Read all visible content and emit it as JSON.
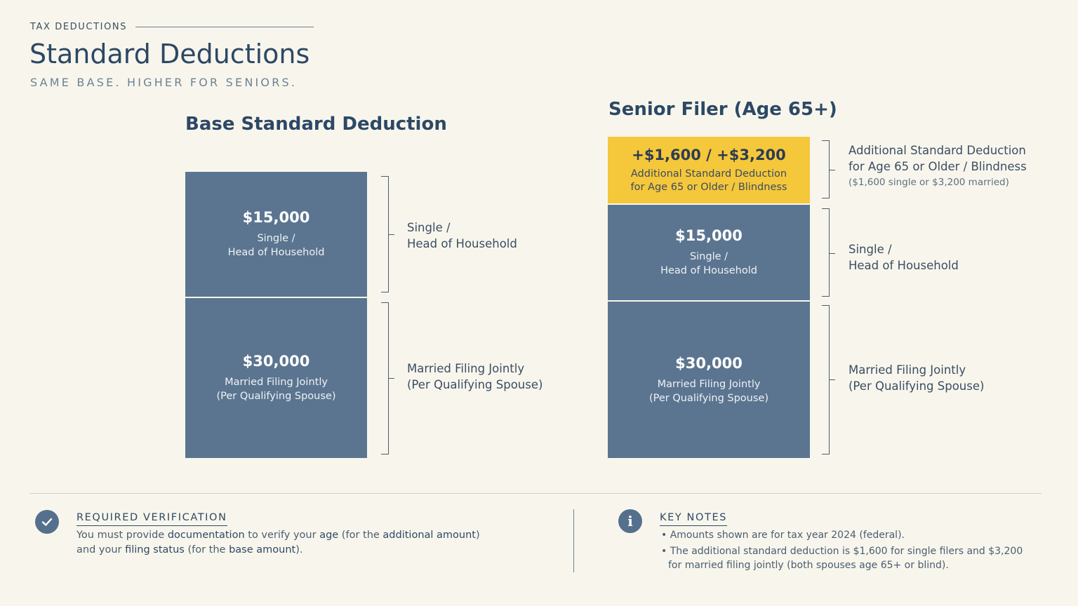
{
  "header": {
    "eyebrow": "TAX DEDUCTIONS",
    "title": "Standard Deductions",
    "subtitle": "SAME BASE. HIGHER FOR SENIORS."
  },
  "base": {
    "title": "Base Standard Deduction",
    "blocks": [
      {
        "amount": "$15,000",
        "label_line1": "Single /",
        "label_line2": "Head of Household"
      },
      {
        "amount": "$30,000",
        "label_line1": "Married Filing Jointly",
        "label_line2": "(Per Qualifying Spouse)"
      }
    ],
    "side_labels": [
      {
        "line1": "Single /",
        "line2": "Head of Household"
      },
      {
        "line1": "Married Filing Jointly",
        "line2": "(Per Qualifying Spouse)"
      }
    ]
  },
  "senior": {
    "title": "Senior Filer (Age 65+)",
    "additional": {
      "amount": "+$1,600 / +$3,200",
      "label_line1": "Additional Standard Deduction",
      "label_line2": "for Age 65 or Older / Blindness"
    },
    "blocks": [
      {
        "amount": "$15,000",
        "label_line1": "Single /",
        "label_line2": "Head of Household"
      },
      {
        "amount": "$30,000",
        "label_line1": "Married Filing Jointly",
        "label_line2": "(Per Qualifying Spouse)"
      }
    ],
    "side_labels": {
      "additional": {
        "line1": "Additional Standard Deduction",
        "line2": "for Age 65 or Older / Blindness",
        "line3": "($1,600 single or $3,200 married)"
      },
      "single": {
        "line1": "Single /",
        "line2": "Head of Household"
      },
      "married": {
        "line1": "Married Filing Jointly",
        "line2": "(Per Qualifying Spouse)"
      }
    }
  },
  "footer": {
    "verification": {
      "icon": "check-icon",
      "heading": "REQUIRED VERIFICATION",
      "text_1": "You must provide ",
      "text_strong_1": "documentation",
      "text_2": " to verify your ",
      "text_strong_2": "age",
      "text_3": " (for the ",
      "text_strong_3": "additional amount",
      "text_4": ")",
      "text_5": "and your ",
      "text_strong_4": "filing status",
      "text_6": " (for the ",
      "text_strong_5": "base amount",
      "text_7": ")."
    },
    "notes": {
      "icon": "info-icon",
      "heading": "KEY NOTES",
      "items": [
        "Amounts shown are for tax year 2024 (federal).",
        "The additional standard deduction is $1,600 for single filers and $3,200 for married filing jointly (both spouses age 65+ or blind)."
      ]
    }
  },
  "colors": {
    "background": "#f8f6ec",
    "block": "#5b7590",
    "additional": "#f5c73a",
    "heading": "#2d4866"
  }
}
